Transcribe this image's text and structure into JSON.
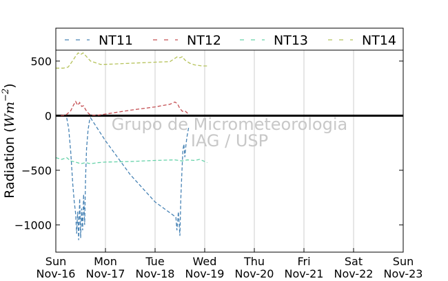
{
  "chart_data": {
    "type": "line",
    "title": "",
    "ylabel_prefix": "Radiation (",
    "ylabel_unit": "Wm",
    "ylabel_exponent": "−2",
    "ylabel_suffix": ")",
    "xlabel": "",
    "ylim": [
      -1250,
      600
    ],
    "yticks": [
      500,
      0,
      -500,
      -1000
    ],
    "ytick_labels": [
      "500",
      "0",
      "−500",
      "−1000"
    ],
    "xlim_days": [
      0,
      7
    ],
    "xtick_labels": [
      [
        "Sun",
        "Nov-16"
      ],
      [
        "Mon",
        "Nov-17"
      ],
      [
        "Tue",
        "Nov-18"
      ],
      [
        "Wed",
        "Nov-19"
      ],
      [
        "Thu",
        "Nov-20"
      ],
      [
        "Fri",
        "Nov-21"
      ],
      [
        "Sat",
        "Nov-22"
      ],
      [
        "Sun",
        "Nov-23"
      ]
    ],
    "grid": "vertical",
    "legend_position": "top",
    "zero_line": true,
    "watermark": [
      "Grupo de Micrometeorologia",
      "IAG / USP"
    ],
    "series": [
      {
        "name": "NT11",
        "color": "#4682b4",
        "points": [
          [
            0.22,
            -20
          ],
          [
            0.26,
            -120
          ],
          [
            0.3,
            -330
          ],
          [
            0.34,
            -620
          ],
          [
            0.37,
            -780
          ],
          [
            0.4,
            -900
          ],
          [
            0.42,
            -1080
          ],
          [
            0.44,
            -880
          ],
          [
            0.46,
            -1140
          ],
          [
            0.48,
            -760
          ],
          [
            0.5,
            -1120
          ],
          [
            0.52,
            -850
          ],
          [
            0.54,
            -1050
          ],
          [
            0.56,
            -720
          ],
          [
            0.58,
            -1000
          ],
          [
            0.6,
            -560
          ],
          [
            0.62,
            -300
          ],
          [
            0.65,
            -130
          ],
          [
            0.68,
            -40
          ],
          [
            0.7,
            -20
          ],
          [
            1.0,
            -230
          ],
          [
            1.5,
            -540
          ],
          [
            2.0,
            -790
          ],
          [
            2.42,
            -930
          ],
          [
            2.44,
            -1050
          ],
          [
            2.47,
            -880
          ],
          [
            2.5,
            -1100
          ],
          [
            2.52,
            -750
          ],
          [
            2.54,
            -520
          ],
          [
            2.56,
            -320
          ],
          [
            2.58,
            -260
          ],
          [
            2.6,
            -380
          ],
          [
            2.62,
            -280
          ],
          [
            2.64,
            -200
          ],
          [
            2.66,
            -150
          ],
          [
            2.68,
            -100
          ]
        ]
      },
      {
        "name": "NT12",
        "color": "#c44e52",
        "points": [
          [
            0.1,
            0
          ],
          [
            0.2,
            5
          ],
          [
            0.3,
            45
          ],
          [
            0.36,
            100
          ],
          [
            0.4,
            130
          ],
          [
            0.44,
            95
          ],
          [
            0.48,
            120
          ],
          [
            0.52,
            85
          ],
          [
            0.56,
            90
          ],
          [
            0.6,
            55
          ],
          [
            0.65,
            25
          ],
          [
            0.7,
            5
          ],
          [
            0.85,
            5
          ],
          [
            1.0,
            15
          ],
          [
            1.5,
            50
          ],
          [
            2.0,
            80
          ],
          [
            2.3,
            105
          ],
          [
            2.4,
            125
          ],
          [
            2.45,
            110
          ],
          [
            2.5,
            65
          ],
          [
            2.55,
            40
          ],
          [
            2.6,
            45
          ],
          [
            2.66,
            20
          ]
        ]
      },
      {
        "name": "NT13",
        "color": "#64d2a8",
        "points": [
          [
            0.0,
            -385
          ],
          [
            0.12,
            -400
          ],
          [
            0.22,
            -385
          ],
          [
            0.3,
            -415
          ],
          [
            0.4,
            -425
          ],
          [
            0.5,
            -440
          ],
          [
            0.6,
            -430
          ],
          [
            0.7,
            -440
          ],
          [
            0.85,
            -430
          ],
          [
            1.0,
            -425
          ],
          [
            1.5,
            -420
          ],
          [
            2.0,
            -410
          ],
          [
            2.4,
            -405
          ],
          [
            2.55,
            -415
          ],
          [
            2.65,
            -405
          ],
          [
            2.8,
            -410
          ],
          [
            2.9,
            -400
          ],
          [
            3.0,
            -420
          ],
          [
            3.05,
            -430
          ]
        ]
      },
      {
        "name": "NT14",
        "color": "#b5c259",
        "points": [
          [
            0.0,
            435
          ],
          [
            0.15,
            435
          ],
          [
            0.25,
            445
          ],
          [
            0.35,
            510
          ],
          [
            0.4,
            545
          ],
          [
            0.45,
            575
          ],
          [
            0.5,
            560
          ],
          [
            0.55,
            575
          ],
          [
            0.6,
            550
          ],
          [
            0.7,
            500
          ],
          [
            0.9,
            470
          ],
          [
            1.0,
            470
          ],
          [
            1.5,
            480
          ],
          [
            2.0,
            490
          ],
          [
            2.3,
            495
          ],
          [
            2.4,
            525
          ],
          [
            2.45,
            540
          ],
          [
            2.5,
            530
          ],
          [
            2.55,
            540
          ],
          [
            2.6,
            510
          ],
          [
            2.7,
            480
          ],
          [
            2.8,
            465
          ],
          [
            2.95,
            455
          ],
          [
            3.05,
            455
          ]
        ]
      }
    ]
  }
}
